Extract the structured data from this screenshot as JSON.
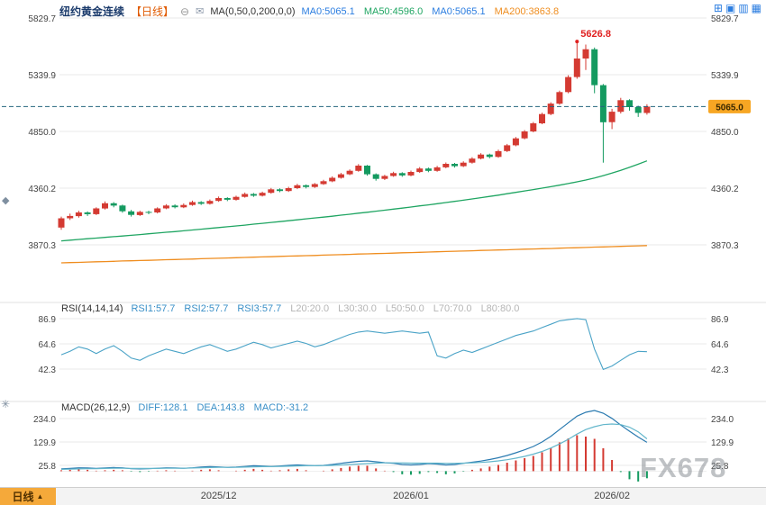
{
  "header": {
    "symbol": "纽约黄金连续",
    "period_tag": "【日线】",
    "collapse_glyph": "⊖",
    "indicator_icon": "✉",
    "ma_group_label": "MA(0,50,0,200,0,0)",
    "ma_values": [
      {
        "label": "MA0:5065.1",
        "color": "#2b7de0"
      },
      {
        "label": "MA50:4596.0",
        "color": "#1fa562"
      },
      {
        "label": "MA0:5065.1",
        "color": "#2b7de0"
      },
      {
        "label": "MA200:3863.8",
        "color": "#ef8d1f"
      }
    ]
  },
  "layout_icons": [
    {
      "name": "add-window-icon",
      "glyph": "⊞"
    },
    {
      "name": "single-view-icon",
      "glyph": "▣"
    },
    {
      "name": "split-horizontal-icon",
      "glyph": "▥"
    },
    {
      "name": "split-grid-icon",
      "glyph": "▦"
    }
  ],
  "side_icons": [
    {
      "name": "diamond-marker-icon",
      "glyph": "◆"
    },
    {
      "name": "star-marker-icon",
      "glyph": "✳"
    }
  ],
  "rsi_header": {
    "label": "RSI(14,14,14)",
    "values": [
      {
        "label": "RSI1:57.7",
        "color": "#3a8fc7"
      },
      {
        "label": "RSI2:57.7",
        "color": "#3a8fc7"
      },
      {
        "label": "RSI3:57.7",
        "color": "#3a8fc7"
      },
      {
        "label": "L20:20.0",
        "color": "#b5b5b5"
      },
      {
        "label": "L30:30.0",
        "color": "#b5b5b5"
      },
      {
        "label": "L50:50.0",
        "color": "#b5b5b5"
      },
      {
        "label": "L70:70.0",
        "color": "#b5b5b5"
      },
      {
        "label": "L80:80.0",
        "color": "#b5b5b5"
      }
    ]
  },
  "macd_header": {
    "label": "MACD(26,12,9)",
    "values": [
      {
        "label": "DIFF:128.1",
        "color": "#3a8fc7"
      },
      {
        "label": "DEA:143.8",
        "color": "#3a8fc7"
      },
      {
        "label": "MACD:-31.2",
        "color": "#3a8fc7"
      }
    ]
  },
  "price_line": {
    "label": "5065.0",
    "value": 5065.0,
    "box_color": "#f7a623"
  },
  "peak_annotation": {
    "label": "5626.8",
    "value": 5626.8,
    "color": "#e02020",
    "candle_index": 59
  },
  "watermark": "FX678",
  "bottom_bar": {
    "period_tab": "日线",
    "arrow": "▲"
  },
  "chart_data": {
    "type": "candlestick",
    "title": "纽约黄金连续 日线",
    "panels": [
      "price",
      "RSI",
      "MACD"
    ],
    "price_axis_ticks": [
      5829.7,
      5339.9,
      4850.0,
      4360.2,
      3870.3
    ],
    "x_ticks": [
      {
        "index": 18,
        "label": "2025/12"
      },
      {
        "index": 40,
        "label": "2026/01"
      },
      {
        "index": 63,
        "label": "2026/02"
      }
    ],
    "candles_ohlc": [
      [
        4020,
        4115,
        4000,
        4100
      ],
      [
        4100,
        4140,
        4085,
        4120
      ],
      [
        4118,
        4165,
        4105,
        4150
      ],
      [
        4150,
        4160,
        4120,
        4135
      ],
      [
        4135,
        4195,
        4128,
        4185
      ],
      [
        4185,
        4245,
        4175,
        4230
      ],
      [
        4230,
        4240,
        4195,
        4210
      ],
      [
        4210,
        4218,
        4148,
        4160
      ],
      [
        4160,
        4172,
        4115,
        4130
      ],
      [
        4128,
        4165,
        4120,
        4155
      ],
      [
        4155,
        4165,
        4135,
        4150
      ],
      [
        4150,
        4195,
        4142,
        4185
      ],
      [
        4185,
        4222,
        4178,
        4210
      ],
      [
        4210,
        4220,
        4185,
        4195
      ],
      [
        4195,
        4228,
        4188,
        4215
      ],
      [
        4215,
        4252,
        4208,
        4240
      ],
      [
        4240,
        4248,
        4215,
        4225
      ],
      [
        4225,
        4262,
        4218,
        4250
      ],
      [
        4250,
        4288,
        4242,
        4275
      ],
      [
        4275,
        4282,
        4248,
        4260
      ],
      [
        4260,
        4295,
        4252,
        4285
      ],
      [
        4285,
        4322,
        4278,
        4310
      ],
      [
        4310,
        4318,
        4285,
        4295
      ],
      [
        4295,
        4330,
        4288,
        4320
      ],
      [
        4320,
        4362,
        4312,
        4350
      ],
      [
        4350,
        4358,
        4325,
        4335
      ],
      [
        4335,
        4372,
        4328,
        4360
      ],
      [
        4360,
        4398,
        4352,
        4385
      ],
      [
        4385,
        4392,
        4358,
        4370
      ],
      [
        4370,
        4405,
        4362,
        4395
      ],
      [
        4395,
        4432,
        4388,
        4420
      ],
      [
        4420,
        4462,
        4412,
        4450
      ],
      [
        4450,
        4492,
        4442,
        4480
      ],
      [
        4480,
        4522,
        4472,
        4510
      ],
      [
        4510,
        4568,
        4502,
        4555
      ],
      [
        4555,
        4560,
        4468,
        4480
      ],
      [
        4480,
        4488,
        4425,
        4440
      ],
      [
        4440,
        4475,
        4430,
        4465
      ],
      [
        4465,
        4502,
        4458,
        4490
      ],
      [
        4490,
        4498,
        4458,
        4470
      ],
      [
        4470,
        4512,
        4462,
        4500
      ],
      [
        4500,
        4542,
        4492,
        4530
      ],
      [
        4530,
        4538,
        4498,
        4510
      ],
      [
        4510,
        4552,
        4502,
        4540
      ],
      [
        4540,
        4582,
        4532,
        4570
      ],
      [
        4570,
        4578,
        4538,
        4550
      ],
      [
        4550,
        4592,
        4542,
        4580
      ],
      [
        4580,
        4628,
        4572,
        4615
      ],
      [
        4615,
        4662,
        4608,
        4650
      ],
      [
        4650,
        4658,
        4618,
        4630
      ],
      [
        4630,
        4692,
        4622,
        4680
      ],
      [
        4680,
        4742,
        4672,
        4730
      ],
      [
        4730,
        4802,
        4722,
        4790
      ],
      [
        4790,
        4862,
        4782,
        4850
      ],
      [
        4850,
        4932,
        4842,
        4920
      ],
      [
        4920,
        5012,
        4912,
        5000
      ],
      [
        5000,
        5102,
        4990,
        5090
      ],
      [
        5090,
        5202,
        5080,
        5190
      ],
      [
        5190,
        5335,
        5180,
        5320
      ],
      [
        5320,
        5626.8,
        5305,
        5480
      ],
      [
        5480,
        5600,
        5380,
        5560
      ],
      [
        5560,
        5575,
        5180,
        5250
      ],
      [
        5250,
        5260,
        4580,
        4930
      ],
      [
        4930,
        5045,
        4870,
        5020
      ],
      [
        5020,
        5140,
        5005,
        5120
      ],
      [
        5120,
        5128,
        5030,
        5060
      ],
      [
        5060,
        5072,
        4975,
        5010
      ],
      [
        5010,
        5085,
        4995,
        5065
      ]
    ],
    "ma50": [
      3905,
      3911,
      3917,
      3923,
      3929,
      3935,
      3941,
      3947,
      3953,
      3959,
      3966,
      3972,
      3979,
      3985,
      3992,
      3999,
      4006,
      4013,
      4020,
      4027,
      4034,
      4041,
      4049,
      4056,
      4064,
      4071,
      4079,
      4087,
      4095,
      4103,
      4110,
      4118,
      4127,
      4135,
      4144,
      4152,
      4161,
      4170,
      4179,
      4188,
      4197,
      4207,
      4216,
      4226,
      4236,
      4246,
      4256,
      4267,
      4278,
      4289,
      4300,
      4312,
      4324,
      4336,
      4348,
      4360,
      4373,
      4386,
      4400,
      4415,
      4430,
      4448,
      4468,
      4490,
      4514,
      4540,
      4567,
      4596
    ],
    "ma200": [
      3715,
      3717,
      3719,
      3722,
      3724,
      3726,
      3728,
      3731,
      3733,
      3735,
      3737,
      3739,
      3742,
      3744,
      3746,
      3748,
      3751,
      3753,
      3755,
      3757,
      3759,
      3762,
      3764,
      3766,
      3768,
      3771,
      3773,
      3775,
      3777,
      3779,
      3782,
      3784,
      3786,
      3788,
      3791,
      3793,
      3795,
      3797,
      3799,
      3802,
      3804,
      3806,
      3808,
      3811,
      3813,
      3815,
      3817,
      3819,
      3822,
      3824,
      3826,
      3828,
      3831,
      3833,
      3835,
      3837,
      3839,
      3842,
      3844,
      3846,
      3848,
      3851,
      3853,
      3855,
      3857,
      3860,
      3862,
      3864
    ],
    "rsi": {
      "axis_ticks": [
        86.9,
        64.6,
        42.3
      ],
      "values": [
        55,
        58,
        62,
        60,
        56,
        60,
        63,
        58,
        52,
        50,
        54,
        57,
        60,
        58,
        56,
        59,
        62,
        64,
        61,
        58,
        60,
        63,
        66,
        64,
        61,
        63,
        65,
        67,
        65,
        62,
        64,
        67,
        70,
        73,
        75,
        76,
        75,
        74,
        75,
        76,
        75,
        74,
        75,
        54,
        52,
        56,
        59,
        57,
        60,
        63,
        66,
        69,
        72,
        74,
        76,
        79,
        82,
        85,
        86,
        87,
        86,
        60,
        42,
        45,
        50,
        55,
        58,
        57.7
      ]
    },
    "macd": {
      "axis_ticks": [
        234.0,
        129.9,
        25.8
      ],
      "diff": [
        10,
        12,
        15,
        14,
        12,
        14,
        16,
        15,
        11,
        10,
        11,
        13,
        15,
        14,
        13,
        15,
        18,
        20,
        19,
        17,
        18,
        21,
        24,
        23,
        21,
        23,
        26,
        28,
        26,
        24,
        26,
        30,
        35,
        40,
        44,
        46,
        42,
        38,
        35,
        30,
        28,
        30,
        34,
        32,
        28,
        30,
        35,
        40,
        45,
        52,
        60,
        70,
        82,
        95,
        110,
        130,
        155,
        185,
        215,
        245,
        262,
        270,
        258,
        235,
        205,
        178,
        152,
        128.1
      ],
      "dea": [
        8,
        9,
        10,
        11,
        11,
        12,
        13,
        13,
        12,
        12,
        12,
        12,
        13,
        13,
        13,
        14,
        15,
        16,
        17,
        17,
        17,
        18,
        19,
        20,
        20,
        21,
        22,
        23,
        24,
        24,
        25,
        26,
        28,
        30,
        32,
        34,
        36,
        37,
        37,
        37,
        36,
        36,
        36,
        36,
        35,
        35,
        36,
        37,
        39,
        42,
        46,
        51,
        58,
        66,
        76,
        88,
        103,
        121,
        142,
        165,
        185,
        198,
        207,
        210,
        207,
        196,
        175,
        143.8
      ]
    },
    "colors": {
      "up": "#d43a32",
      "down": "#149a60",
      "ma50": "#1fa562",
      "ma200": "#ef8d1f",
      "rsi_line": "#4aa3c7",
      "diff_line": "#2a7ab0",
      "dea_line": "#62b6cb",
      "grid": "#e8e8e8",
      "price_dash": "#23647d"
    }
  }
}
